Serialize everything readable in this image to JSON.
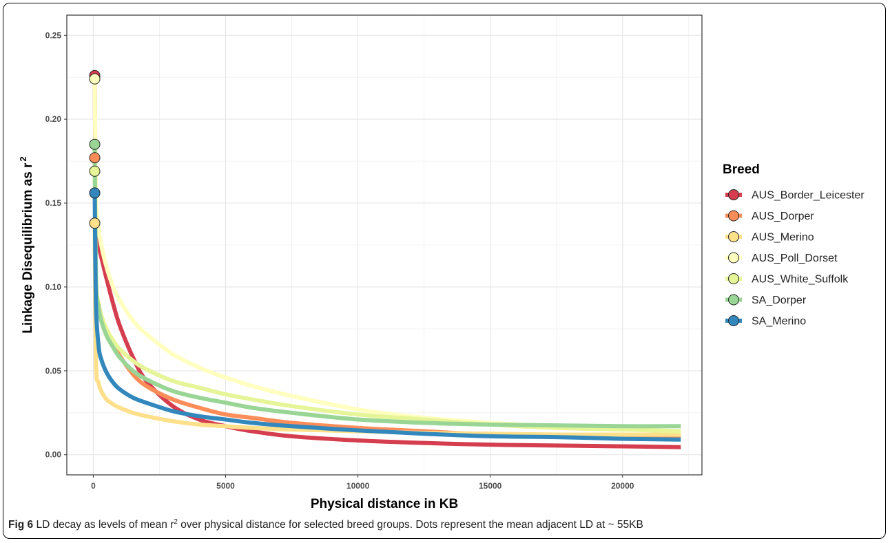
{
  "chart_data": {
    "type": "line",
    "title": "",
    "xlabel": "Physical distance in KB",
    "ylabel": "Linkage Disequilibrium as r",
    "ylabel_superscript": "2",
    "xlim": [
      -1000,
      23000
    ],
    "ylim": [
      -0.012,
      0.262
    ],
    "x_ticks": [
      0,
      5000,
      10000,
      15000,
      20000
    ],
    "x_tick_labels": [
      "0",
      "5000",
      "10000",
      "15000",
      "20000"
    ],
    "y_ticks": [
      0.0,
      0.05,
      0.1,
      0.15,
      0.2,
      0.25
    ],
    "y_tick_labels": [
      "0.00",
      "0.05",
      "0.10",
      "0.15",
      "0.20",
      "0.25"
    ],
    "grid": true,
    "legend_title": "Breed",
    "legend_position": "right",
    "x": [
      55,
      100,
      200,
      300,
      500,
      750,
      1000,
      1500,
      2000,
      3000,
      4000,
      5000,
      6000,
      7500,
      10000,
      12500,
      15000,
      17500,
      20000,
      22200
    ],
    "series": [
      {
        "name": "AUS_Border_Leicester",
        "color": "#d53e4f",
        "dot": 0.226,
        "values": [
          0.226,
          0.14,
          0.125,
          0.118,
          0.105,
          0.09,
          0.077,
          0.058,
          0.044,
          0.029,
          0.021,
          0.017,
          0.014,
          0.011,
          0.0085,
          0.007,
          0.006,
          0.0055,
          0.005,
          0.0045
        ]
      },
      {
        "name": "AUS_Dorper",
        "color": "#fc8d59",
        "dot": 0.177,
        "values": [
          0.177,
          0.105,
          0.09,
          0.083,
          0.074,
          0.066,
          0.059,
          0.048,
          0.041,
          0.033,
          0.028,
          0.024,
          0.022,
          0.019,
          0.016,
          0.014,
          0.012,
          0.0115,
          0.011,
          0.0105
        ]
      },
      {
        "name": "AUS_Merino",
        "color": "#fee08b",
        "dot": 0.138,
        "values": [
          0.138,
          0.055,
          0.043,
          0.038,
          0.033,
          0.03,
          0.028,
          0.025,
          0.023,
          0.02,
          0.018,
          0.017,
          0.016,
          0.015,
          0.014,
          0.013,
          0.0125,
          0.012,
          0.012,
          0.012
        ]
      },
      {
        "name": "AUS_Poll_Dorset",
        "color": "#ffffbf",
        "dot": 0.224,
        "values": [
          0.224,
          0.155,
          0.135,
          0.125,
          0.112,
          0.1,
          0.092,
          0.08,
          0.072,
          0.06,
          0.052,
          0.046,
          0.041,
          0.035,
          0.027,
          0.022,
          0.019,
          0.017,
          0.0155,
          0.014
        ]
      },
      {
        "name": "AUS_White_Suffolk",
        "color": "#e6f598",
        "dot": 0.169,
        "values": [
          0.169,
          0.105,
          0.09,
          0.083,
          0.075,
          0.068,
          0.063,
          0.056,
          0.051,
          0.044,
          0.04,
          0.036,
          0.033,
          0.029,
          0.024,
          0.021,
          0.018,
          0.016,
          0.015,
          0.014
        ]
      },
      {
        "name": "SA_Dorper",
        "color": "#99d594",
        "dot": 0.185,
        "values": [
          0.185,
          0.105,
          0.088,
          0.08,
          0.071,
          0.064,
          0.058,
          0.05,
          0.045,
          0.038,
          0.034,
          0.031,
          0.028,
          0.025,
          0.021,
          0.019,
          0.018,
          0.0175,
          0.017,
          0.017
        ]
      },
      {
        "name": "SA_Merino",
        "color": "#3288bd",
        "dot": 0.156,
        "values": [
          0.156,
          0.09,
          0.065,
          0.057,
          0.049,
          0.043,
          0.039,
          0.034,
          0.031,
          0.026,
          0.023,
          0.021,
          0.019,
          0.017,
          0.0145,
          0.0125,
          0.011,
          0.0105,
          0.0095,
          0.009
        ]
      }
    ]
  },
  "caption": {
    "fig_label": "Fig 6",
    "text_before_sup": " LD decay as levels of mean r",
    "sup": "2",
    "text_after_sup": " over physical distance for selected breed groups. Dots represent the mean adjacent LD at ~ 55KB"
  }
}
